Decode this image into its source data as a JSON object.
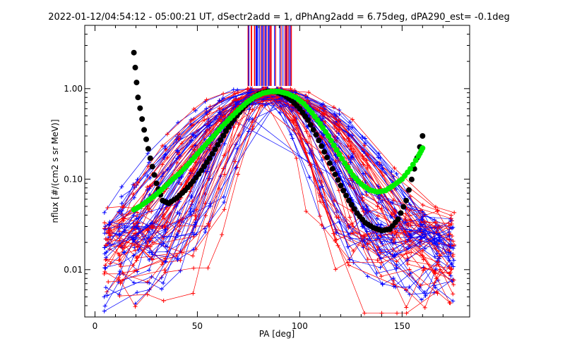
{
  "chart_data": {
    "type": "scatter",
    "title": "2022-01-12/04:54:12 - 05:00:21 UT, dSectr2add = 1, dPhAng2add = 6.75deg, dPA290_est=  -0.1deg",
    "xlabel": "PA [deg]",
    "ylabel": "nflux [#/(cm2 s sr MeV)]",
    "xlim": [
      -5,
      183
    ],
    "ylim": [
      0.003,
      5
    ],
    "yscale": "log",
    "grid": false,
    "x_ticks": [
      {
        "value": 0,
        "label": "0"
      },
      {
        "value": 50,
        "label": "50"
      },
      {
        "value": 100,
        "label": "100"
      },
      {
        "value": 150,
        "label": "150"
      }
    ],
    "y_ticks": [
      {
        "value": 0.01,
        "label": "0.01"
      },
      {
        "value": 0.1,
        "label": "0.10"
      },
      {
        "value": 1,
        "label": "1.00"
      }
    ],
    "colors": {
      "red_series": "#ff0000",
      "blue_series": "#0000ff",
      "black_fit": "#000000",
      "green_fit": "#00ee00"
    },
    "series": [
      {
        "x": [
          19,
          21,
          24,
          27,
          30,
          33,
          36,
          40,
          44,
          48,
          52,
          56,
          60,
          64,
          68,
          72,
          76,
          80,
          84,
          88,
          92,
          96,
          100,
          104,
          108,
          112,
          116,
          120,
          124,
          128,
          132,
          136,
          140,
          144,
          148,
          152,
          156,
          160
        ],
        "y": [
          2.5,
          0.8,
          0.35,
          0.17,
          0.09,
          0.058,
          0.054,
          0.062,
          0.075,
          0.095,
          0.125,
          0.17,
          0.24,
          0.34,
          0.46,
          0.6,
          0.75,
          0.87,
          0.93,
          0.93,
          0.86,
          0.74,
          0.6,
          0.45,
          0.31,
          0.2,
          0.13,
          0.085,
          0.058,
          0.042,
          0.033,
          0.029,
          0.027,
          0.028,
          0.036,
          0.058,
          0.13,
          0.3
        ],
        "color": "#000000",
        "marker": "dots"
      },
      {
        "x": [
          19,
          22,
          26,
          30,
          34,
          38,
          42,
          46,
          50,
          54,
          58,
          62,
          66,
          70,
          74,
          78,
          82,
          86,
          90,
          94,
          98,
          102,
          106,
          110,
          114,
          118,
          122,
          126,
          130,
          134,
          138,
          142,
          146,
          150,
          154,
          158,
          160
        ],
        "y": [
          0.046,
          0.05,
          0.058,
          0.068,
          0.082,
          0.1,
          0.12,
          0.15,
          0.19,
          0.24,
          0.3,
          0.38,
          0.47,
          0.58,
          0.7,
          0.81,
          0.89,
          0.93,
          0.93,
          0.88,
          0.8,
          0.68,
          0.54,
          0.41,
          0.3,
          0.21,
          0.15,
          0.11,
          0.088,
          0.076,
          0.072,
          0.075,
          0.086,
          0.1,
          0.13,
          0.18,
          0.22
        ],
        "color": "#00ee00",
        "marker": "dots"
      }
    ]
  }
}
